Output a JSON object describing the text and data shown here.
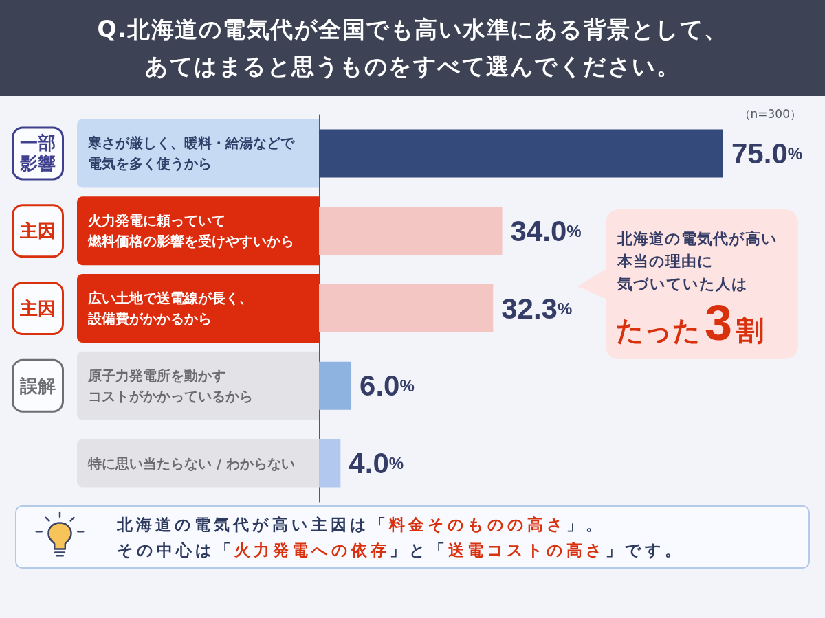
{
  "chart_data": {
    "type": "bar",
    "orientation": "horizontal",
    "title": "Q.北海道の電気代が全国でも高い水準にある背景として、あてはまると思うものをすべて選んでください。",
    "categories": [
      "寒さが厳しく、暖料・給湯などで電気を多く使うから",
      "火力発電に頼っていて燃料価格の影響を受けやすいから",
      "広い土地で送電線が長く、設備費がかかるから",
      "原子力発電所を動かすコストがかかっているから",
      "特に思い当たらない / わからない"
    ],
    "values": [
      75.0,
      34.0,
      32.3,
      6.0,
      4.0
    ],
    "colors": [
      "#344a7a",
      "#f4c6c3",
      "#f4c6c3",
      "#8eb3e0",
      "#b3c8ee"
    ],
    "value_labels": [
      "75.0%",
      "34.0%",
      "32.3%",
      "6.0%",
      "4.0%"
    ],
    "tick_labels": "y",
    "annotations": [
      "（n=300）",
      "一部影響",
      "主因",
      "主因",
      "誤解",
      "北海道の電気代が高い本当の理由に気づいていた人は",
      "たった3割",
      "北海道の電気代が高い主因は「料金そのものの高さ」。その中心は「火力発電への依存」と「送電コストの高さ」です。"
    ]
  }
}
